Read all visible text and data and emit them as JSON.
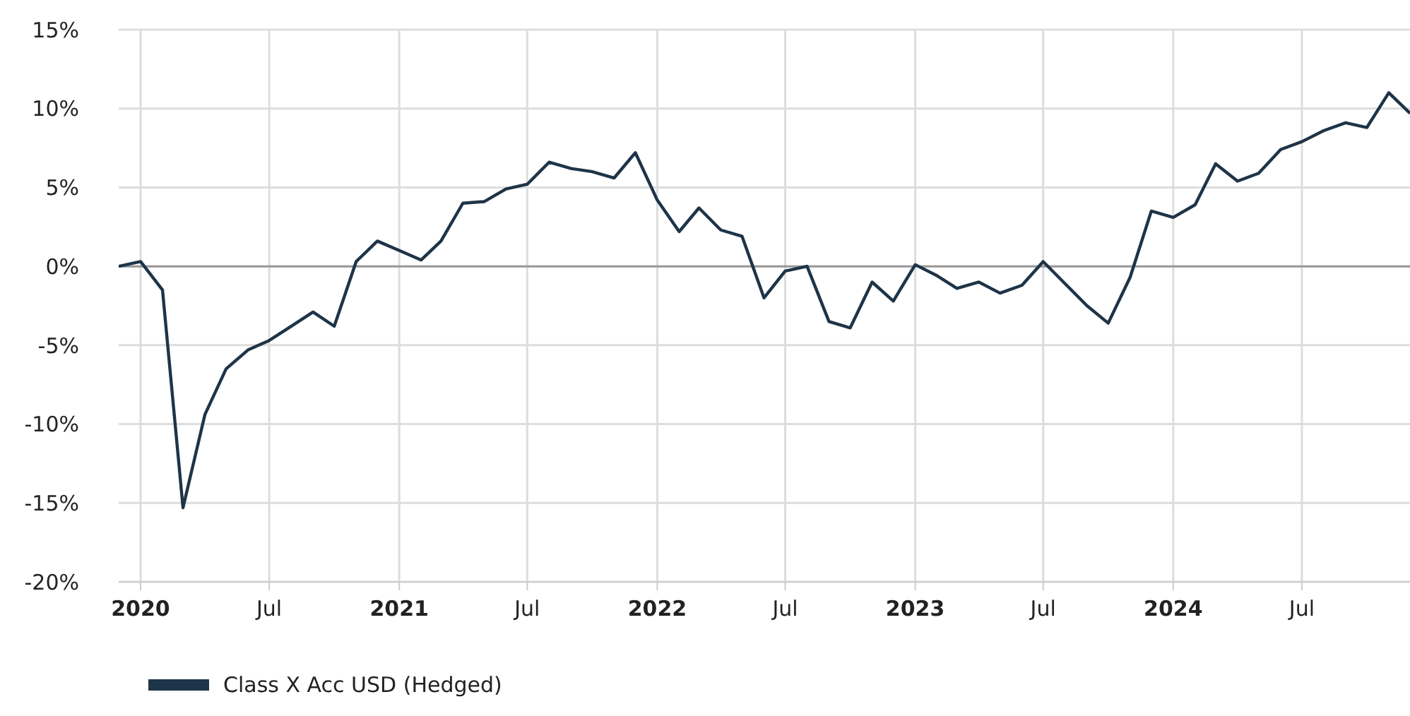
{
  "chart_data": {
    "type": "line",
    "x": [
      "2019-12",
      "2020-01",
      "2020-02",
      "2020-03",
      "2020-04",
      "2020-05",
      "2020-06",
      "2020-07",
      "2020-08",
      "2020-09",
      "2020-10",
      "2020-11",
      "2020-12",
      "2021-01",
      "2021-02",
      "2021-03",
      "2021-04",
      "2021-05",
      "2021-06",
      "2021-07",
      "2021-08",
      "2021-09",
      "2021-10",
      "2021-11",
      "2021-12",
      "2022-01",
      "2022-02",
      "2022-03",
      "2022-04",
      "2022-05",
      "2022-06",
      "2022-07",
      "2022-08",
      "2022-09",
      "2022-10",
      "2022-11",
      "2022-12",
      "2023-01",
      "2023-02",
      "2023-03",
      "2023-04",
      "2023-05",
      "2023-06",
      "2023-07",
      "2023-08",
      "2023-09",
      "2023-10",
      "2023-11",
      "2023-12",
      "2024-01",
      "2024-02",
      "2024-03",
      "2024-04",
      "2024-05",
      "2024-06",
      "2024-07",
      "2024-08",
      "2024-09",
      "2024-10",
      "2024-11",
      "2024-12"
    ],
    "series": [
      {
        "name": "Class X Acc USD (Hedged)",
        "color": "#1e3448",
        "values": [
          0,
          0.3,
          -1.5,
          -15.3,
          -9.4,
          -6.5,
          -5.3,
          -4.7,
          -3.8,
          -2.9,
          -3.8,
          0.3,
          1.6,
          1.0,
          0.4,
          1.6,
          4.0,
          4.1,
          4.9,
          5.2,
          6.6,
          6.2,
          6.0,
          5.6,
          7.2,
          4.2,
          2.2,
          3.7,
          2.3,
          1.9,
          -2.0,
          -0.3,
          0,
          -3.5,
          -3.9,
          -1.0,
          -2.2,
          0.1,
          -0.6,
          -1.4,
          -1.0,
          -1.7,
          -1.2,
          0.3,
          -1.1,
          -2.5,
          -3.6,
          -0.7,
          3.5,
          3.1,
          3.9,
          6.5,
          5.4,
          5.9,
          7.4,
          7.9,
          8.6,
          9.1,
          8.8,
          11.0,
          9.7
        ]
      }
    ],
    "xlim": [
      "2019-12",
      "2024-12"
    ],
    "xticks": [
      {
        "value": "2020-01",
        "label": "2020"
      },
      {
        "value": "2020-07",
        "label": "Jul"
      },
      {
        "value": "2021-01",
        "label": "2021"
      },
      {
        "value": "2021-07",
        "label": "Jul"
      },
      {
        "value": "2022-01",
        "label": "2022"
      },
      {
        "value": "2022-07",
        "label": "Jul"
      },
      {
        "value": "2023-01",
        "label": "2023"
      },
      {
        "value": "2023-07",
        "label": "Jul"
      },
      {
        "value": "2024-01",
        "label": "2024"
      },
      {
        "value": "2024-07",
        "label": "Jul"
      }
    ],
    "ylim": [
      -20,
      15
    ],
    "yticks": [
      {
        "value": -20,
        "label": "-20%"
      },
      {
        "value": -15,
        "label": "-15%"
      },
      {
        "value": -10,
        "label": "-10%"
      },
      {
        "value": -5,
        "label": "-5%"
      },
      {
        "value": 0,
        "label": "0%"
      },
      {
        "value": 5,
        "label": "5%"
      },
      {
        "value": 10,
        "label": "10%"
      },
      {
        "value": 15,
        "label": "15%"
      }
    ],
    "ref_lines": [
      {
        "axis": "y",
        "value": 0,
        "color": "#999999"
      }
    ],
    "grid": true,
    "legend": "bottom",
    "marker": "none",
    "line_style": "solid"
  }
}
